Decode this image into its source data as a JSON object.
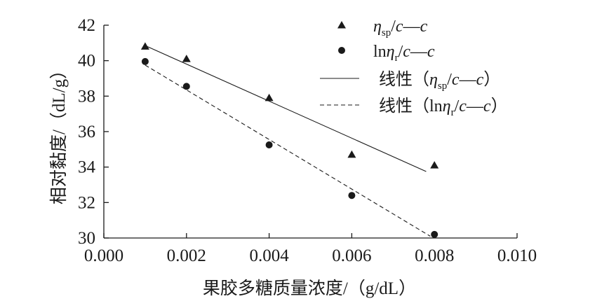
{
  "chart_data": {
    "type": "scatter",
    "xlabel": "果胶多糖质量浓度/（g/dL）",
    "ylabel": "相对黏度/（dL/g）",
    "xlim": [
      0.0,
      0.01
    ],
    "ylim": [
      30,
      42
    ],
    "x_ticks": [
      "0.000",
      "0.002",
      "0.004",
      "0.006",
      "0.008",
      "0.010"
    ],
    "y_ticks": [
      "30",
      "32",
      "34",
      "36",
      "38",
      "40",
      "42"
    ],
    "grid": false,
    "legend_position": "top-right",
    "series": [
      {
        "name": "ηsp/c—c",
        "marker": "triangle",
        "x": [
          0.001,
          0.002,
          0.004,
          0.006,
          0.008
        ],
        "y": [
          40.8,
          40.1,
          37.9,
          34.7,
          34.1
        ]
      },
      {
        "name": "lnηr/c—c",
        "marker": "circle",
        "x": [
          0.001,
          0.002,
          0.004,
          0.006,
          0.008
        ],
        "y": [
          39.95,
          38.55,
          35.25,
          32.4,
          30.2
        ]
      }
    ],
    "fits": [
      {
        "name": "线性（ηsp/c—c）",
        "style": "solid",
        "x": [
          0.001,
          0.0078
        ],
        "y": [
          40.85,
          33.75
        ]
      },
      {
        "name": "线性（lnηr/c—c）",
        "style": "dashed",
        "x": [
          0.001,
          0.0079
        ],
        "y": [
          39.75,
          30.1
        ]
      }
    ],
    "legend": [
      {
        "marker": "triangle",
        "parts": [
          {
            "t": "η",
            "italic": true
          },
          {
            "t": "sp",
            "sub": true
          },
          {
            "t": "/"
          },
          {
            "t": "c",
            "italic": true
          },
          {
            "t": "—"
          },
          {
            "t": "c",
            "italic": true
          }
        ]
      },
      {
        "marker": "circle",
        "parts": [
          {
            "t": "ln"
          },
          {
            "t": "η",
            "italic": true
          },
          {
            "t": "r",
            "sub": true
          },
          {
            "t": "/"
          },
          {
            "t": "c",
            "italic": true
          },
          {
            "t": "—"
          },
          {
            "t": "c",
            "italic": true
          }
        ]
      },
      {
        "marker": "solid",
        "parts": [
          {
            "t": "线性（"
          },
          {
            "t": "η",
            "italic": true
          },
          {
            "t": "sp",
            "sub": true
          },
          {
            "t": "/"
          },
          {
            "t": "c",
            "italic": true
          },
          {
            "t": "—"
          },
          {
            "t": "c",
            "italic": true
          },
          {
            "t": "）"
          }
        ]
      },
      {
        "marker": "dashed",
        "parts": [
          {
            "t": "线性（"
          },
          {
            "t": "ln"
          },
          {
            "t": "η",
            "italic": true
          },
          {
            "t": "r",
            "sub": true
          },
          {
            "t": "/"
          },
          {
            "t": "c",
            "italic": true
          },
          {
            "t": "—"
          },
          {
            "t": "c",
            "italic": true
          },
          {
            "t": "）"
          }
        ]
      }
    ]
  }
}
